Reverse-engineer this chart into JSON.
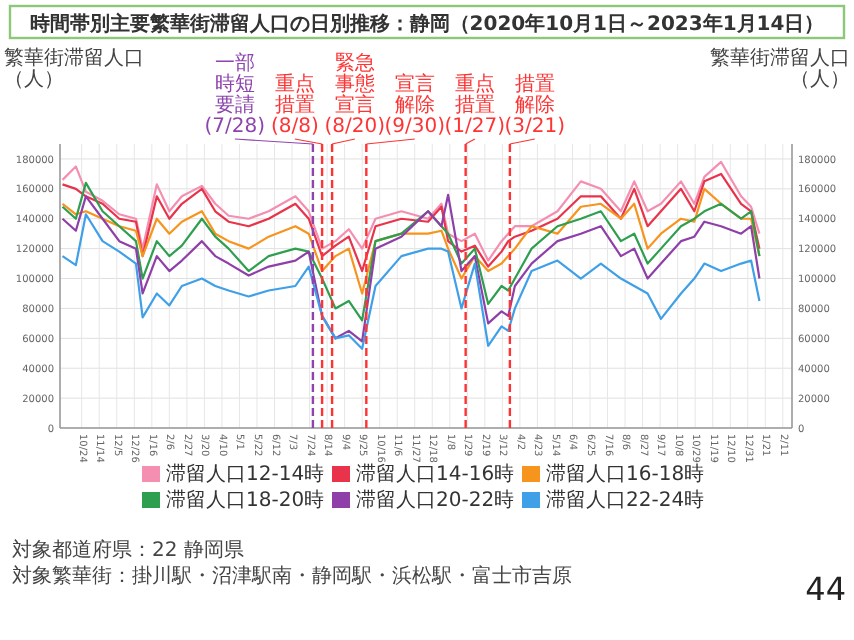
{
  "chart_data": {
    "type": "line",
    "title": "時間帯別主要繁華街滞留人口の日別推移：静岡（2020年10月1日～2023年1月14日）",
    "ylabel": "繁華街滞留人口（人）",
    "y2label": "繁華街滞留人口（人）",
    "x": [
      "2020-10-01",
      "2020-10-17",
      "2020-10-29",
      "2020-11-18",
      "2020-12-08",
      "2020-12-28",
      "2021-01-05",
      "2021-01-22",
      "2021-02-06",
      "2021-02-21",
      "2021-03-17",
      "2021-04-02",
      "2021-04-18",
      "2021-05-12",
      "2021-06-05",
      "2021-07-07",
      "2021-07-23",
      "2021-08-08",
      "2021-08-24",
      "2021-09-09",
      "2021-09-25",
      "2021-10-11",
      "2021-11-11",
      "2021-12-13",
      "2021-12-29",
      "2022-01-06",
      "2022-01-22",
      "2022-02-07",
      "2022-02-23",
      "2022-03-11",
      "2022-03-19",
      "2022-03-27",
      "2022-04-16",
      "2022-05-17",
      "2022-06-14",
      "2022-07-08",
      "2022-08-01",
      "2022-08-17",
      "2022-09-02",
      "2022-09-18",
      "2022-10-12",
      "2022-10-28",
      "2022-11-09",
      "2022-11-29",
      "2022-12-23",
      "2023-01-04",
      "2023-01-14"
    ],
    "series": [
      {
        "name": "滞留人口12-14時",
        "color": "#f48fb1",
        "values": [
          166000,
          175000,
          158000,
          152000,
          143000,
          140000,
          120000,
          163000,
          145000,
          155000,
          162000,
          150000,
          142000,
          140000,
          145000,
          155000,
          145000,
          120000,
          125000,
          133000,
          120000,
          140000,
          145000,
          140000,
          150000,
          130000,
          125000,
          130000,
          112000,
          125000,
          130000,
          135000,
          135000,
          145000,
          165000,
          160000,
          145000,
          165000,
          145000,
          150000,
          165000,
          150000,
          168000,
          178000,
          155000,
          148000,
          130000
        ]
      },
      {
        "name": "滞留人口14-16時",
        "color": "#e8334a",
        "values": [
          163000,
          160000,
          155000,
          150000,
          140000,
          138000,
          115000,
          155000,
          140000,
          150000,
          160000,
          145000,
          138000,
          135000,
          140000,
          150000,
          140000,
          115000,
          122000,
          128000,
          105000,
          135000,
          140000,
          138000,
          148000,
          125000,
          118000,
          122000,
          108000,
          118000,
          125000,
          128000,
          132000,
          140000,
          155000,
          155000,
          140000,
          160000,
          135000,
          145000,
          160000,
          145000,
          165000,
          170000,
          150000,
          145000,
          120000
        ]
      },
      {
        "name": "滞留人口16-18時",
        "color": "#f7941d",
        "values": [
          150000,
          143000,
          145000,
          140000,
          135000,
          132000,
          115000,
          140000,
          130000,
          138000,
          145000,
          130000,
          125000,
          120000,
          128000,
          135000,
          130000,
          105000,
          115000,
          120000,
          90000,
          125000,
          130000,
          130000,
          132000,
          120000,
          100000,
          115000,
          105000,
          110000,
          115000,
          120000,
          135000,
          130000,
          148000,
          150000,
          140000,
          150000,
          120000,
          130000,
          140000,
          138000,
          160000,
          150000,
          140000,
          140000,
          115000
        ]
      },
      {
        "name": "滞留人口18-20時",
        "color": "#2e9e4f",
        "values": [
          148000,
          140000,
          164000,
          145000,
          135000,
          125000,
          100000,
          125000,
          115000,
          122000,
          140000,
          128000,
          120000,
          105000,
          115000,
          120000,
          118000,
          100000,
          80000,
          85000,
          72000,
          125000,
          130000,
          145000,
          135000,
          130000,
          110000,
          120000,
          83000,
          95000,
          92000,
          100000,
          120000,
          135000,
          140000,
          145000,
          125000,
          130000,
          110000,
          120000,
          135000,
          140000,
          145000,
          150000,
          140000,
          145000,
          115000
        ]
      },
      {
        "name": "滞留人口20-22時",
        "color": "#8e3fa8",
        "values": [
          140000,
          132000,
          155000,
          140000,
          125000,
          120000,
          90000,
          115000,
          105000,
          112000,
          125000,
          115000,
          110000,
          102000,
          108000,
          112000,
          118000,
          75000,
          60000,
          65000,
          58000,
          120000,
          128000,
          145000,
          135000,
          156000,
          105000,
          115000,
          70000,
          78000,
          75000,
          95000,
          110000,
          125000,
          130000,
          135000,
          115000,
          120000,
          100000,
          110000,
          125000,
          128000,
          138000,
          135000,
          130000,
          135000,
          100000
        ]
      },
      {
        "name": "滞留人口22-24時",
        "color": "#3fa0e8",
        "values": [
          115000,
          109000,
          143000,
          125000,
          118000,
          110000,
          74000,
          90000,
          82000,
          95000,
          100000,
          95000,
          92000,
          88000,
          92000,
          95000,
          108000,
          75000,
          60000,
          62000,
          53000,
          95000,
          115000,
          120000,
          120000,
          118000,
          80000,
          110000,
          55000,
          68000,
          65000,
          80000,
          105000,
          112000,
          100000,
          110000,
          100000,
          95000,
          90000,
          73000,
          90000,
          100000,
          110000,
          105000,
          110000,
          112000,
          85000
        ]
      }
    ],
    "xlim": [
      "2020-09-28",
      "2023-02-22"
    ],
    "xticks": [
      {
        "value": "2020-10-24",
        "label": "10/24"
      },
      {
        "value": "2020-11-14",
        "label": "11/14"
      },
      {
        "value": "2020-12-05",
        "label": "12/5"
      },
      {
        "value": "2020-12-26",
        "label": "12/26"
      },
      {
        "value": "2021-01-16",
        "label": "1/16"
      },
      {
        "value": "2021-02-06",
        "label": "2/6"
      },
      {
        "value": "2021-02-27",
        "label": "2/27"
      },
      {
        "value": "2021-03-20",
        "label": "3/20"
      },
      {
        "value": "2021-04-10",
        "label": "4/10"
      },
      {
        "value": "2021-05-01",
        "label": "5/1"
      },
      {
        "value": "2021-05-22",
        "label": "5/22"
      },
      {
        "value": "2021-06-12",
        "label": "6/12"
      },
      {
        "value": "2021-07-03",
        "label": "7/3"
      },
      {
        "value": "2021-07-24",
        "label": "7/24"
      },
      {
        "value": "2021-08-14",
        "label": "8/14"
      },
      {
        "value": "2021-09-04",
        "label": "9/4"
      },
      {
        "value": "2021-09-25",
        "label": "9/25"
      },
      {
        "value": "2021-10-16",
        "label": "10/16"
      },
      {
        "value": "2021-11-06",
        "label": "11/6"
      },
      {
        "value": "2021-11-27",
        "label": "11/27"
      },
      {
        "value": "2021-12-18",
        "label": "12/18"
      },
      {
        "value": "2022-01-08",
        "label": "1/8"
      },
      {
        "value": "2022-01-29",
        "label": "1/29"
      },
      {
        "value": "2022-02-19",
        "label": "2/19"
      },
      {
        "value": "2022-03-12",
        "label": "3/12"
      },
      {
        "value": "2022-04-02",
        "label": "4/2"
      },
      {
        "value": "2022-04-23",
        "label": "4/23"
      },
      {
        "value": "2022-05-14",
        "label": "5/14"
      },
      {
        "value": "2022-06-04",
        "label": "6/4"
      },
      {
        "value": "2022-06-25",
        "label": "6/25"
      },
      {
        "value": "2022-07-16",
        "label": "7/16"
      },
      {
        "value": "2022-08-06",
        "label": "8/6"
      },
      {
        "value": "2022-08-27",
        "label": "8/27"
      },
      {
        "value": "2022-09-17",
        "label": "9/17"
      },
      {
        "value": "2022-10-08",
        "label": "10/8"
      },
      {
        "value": "2022-10-29",
        "label": "10/29"
      },
      {
        "value": "2022-11-19",
        "label": "11/19"
      },
      {
        "value": "2022-12-10",
        "label": "12/10"
      },
      {
        "value": "2022-12-31",
        "label": "12/31"
      },
      {
        "value": "2023-01-21",
        "label": "1/21"
      },
      {
        "value": "2023-02-11",
        "label": "2/11"
      }
    ],
    "ylim": [
      0,
      190000
    ],
    "yticks": [
      0,
      20000,
      40000,
      60000,
      80000,
      100000,
      120000,
      140000,
      160000,
      180000
    ],
    "y2lim": [
      0,
      190000
    ],
    "y2ticks": [
      0,
      20000,
      40000,
      60000,
      80000,
      100000,
      120000,
      140000,
      160000,
      180000
    ],
    "ref_lines": [
      {
        "axis": "x",
        "value": "2021-07-28",
        "label": "一部時短要請(7/28)",
        "color": "#8e44ad",
        "line_style": "dashed"
      },
      {
        "axis": "x",
        "value": "2021-08-08",
        "label": "重点措置(8/8)",
        "color": "#ff3333",
        "line_style": "dashed"
      },
      {
        "axis": "x",
        "value": "2021-08-20",
        "label": "緊急事態宣言(8/20)",
        "color": "#ff3333",
        "line_style": "dashed"
      },
      {
        "axis": "x",
        "value": "2021-09-30",
        "label": "宣言解除(9/30)",
        "color": "#ff3333",
        "line_style": "dashed"
      },
      {
        "axis": "x",
        "value": "2022-01-27",
        "label": "重点措置(1/27)",
        "color": "#ff3333",
        "line_style": "dashed"
      },
      {
        "axis": "x",
        "value": "2022-03-21",
        "label": "措置解除(3/21)",
        "color": "#ff3333",
        "line_style": "dashed"
      }
    ],
    "annotations": [
      "対象都道府県：22 静岡県",
      "対象繁華街：掛川駅・沼津駅南・静岡駅・浜松駅・富士市吉原",
      "44"
    ],
    "grid": true,
    "legend": "bottom",
    "marker": "none",
    "line_style": "solid"
  }
}
